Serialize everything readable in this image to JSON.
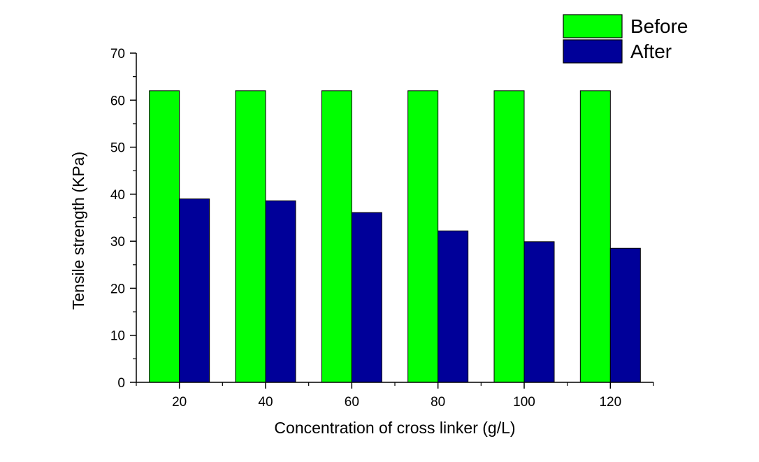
{
  "chart_data": {
    "type": "bar",
    "title": "",
    "xlabel": "Concentration of cross linker (g/L)",
    "ylabel": "Tensile strength (KPa)",
    "categories": [
      "20",
      "40",
      "60",
      "80",
      "100",
      "120"
    ],
    "series": [
      {
        "name": "Before",
        "color": "#00ff00",
        "values": [
          62,
          62,
          62,
          62,
          62,
          62
        ]
      },
      {
        "name": "After",
        "color": "#000099",
        "values": [
          39,
          38.6,
          36.1,
          32.2,
          29.9,
          28.5
        ]
      }
    ],
    "ylim": [
      0,
      70
    ],
    "yticks": [
      0,
      10,
      20,
      30,
      40,
      50,
      60,
      70
    ],
    "grid": false,
    "legend_position": "top-right"
  }
}
